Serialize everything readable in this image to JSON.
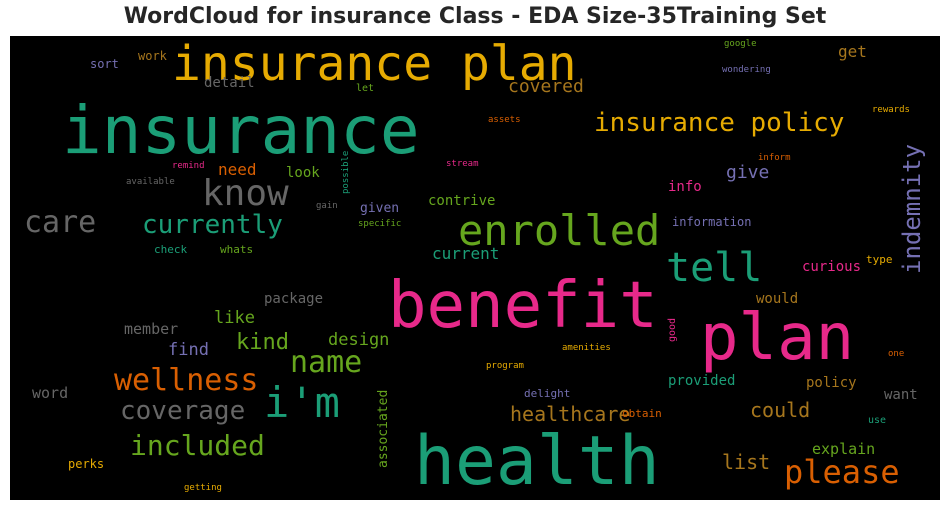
{
  "title": "WordCloud for insurance Class - EDA Size-35Training Set",
  "colors": {
    "background": "#000000",
    "teal": "#1b9e77",
    "orange": "#d95f02",
    "purple": "#7570b3",
    "pink": "#e7298a",
    "green": "#66a61e",
    "gold": "#e6ab02",
    "brown": "#a6761d",
    "gray": "#666666"
  },
  "words": [
    {
      "text": "insurance plan",
      "color": "#e6ab02"
    },
    {
      "text": "insurance",
      "color": "#1b9e77"
    },
    {
      "text": "insurance policy",
      "color": "#e6ab02"
    },
    {
      "text": "know",
      "color": "#666666"
    },
    {
      "text": "care",
      "color": "#666666"
    },
    {
      "text": "currently",
      "color": "#1b9e77"
    },
    {
      "text": "enrolled",
      "color": "#66a61e"
    },
    {
      "text": "tell",
      "color": "#1b9e77"
    },
    {
      "text": "benefit",
      "color": "#e7298a"
    },
    {
      "text": "plan",
      "color": "#e7298a"
    },
    {
      "text": "health",
      "color": "#1b9e77"
    },
    {
      "text": "wellness",
      "color": "#d95f02"
    },
    {
      "text": "i'm",
      "color": "#1b9e77"
    },
    {
      "text": "name",
      "color": "#66a61e"
    },
    {
      "text": "coverage",
      "color": "#666666"
    },
    {
      "text": "included",
      "color": "#66a61e"
    },
    {
      "text": "please",
      "color": "#d95f02"
    },
    {
      "text": "indemnity",
      "color": "#7570b3"
    },
    {
      "text": "covered",
      "color": "#a6761d"
    },
    {
      "text": "get",
      "color": "#a6761d"
    },
    {
      "text": "detail",
      "color": "#666666"
    },
    {
      "text": "sort",
      "color": "#7570b3"
    },
    {
      "text": "work",
      "color": "#a6761d"
    },
    {
      "text": "let",
      "color": "#66a61e"
    },
    {
      "text": "need",
      "color": "#d95f02"
    },
    {
      "text": "look",
      "color": "#66a61e"
    },
    {
      "text": "give",
      "color": "#7570b3"
    },
    {
      "text": "info",
      "color": "#e7298a"
    },
    {
      "text": "contrive",
      "color": "#66a61e"
    },
    {
      "text": "given",
      "color": "#7570b3"
    },
    {
      "text": "information",
      "color": "#7570b3"
    },
    {
      "text": "current",
      "color": "#1b9e77"
    },
    {
      "text": "check",
      "color": "#1b9e77"
    },
    {
      "text": "whats",
      "color": "#66a61e"
    },
    {
      "text": "package",
      "color": "#666666"
    },
    {
      "text": "like",
      "color": "#66a61e"
    },
    {
      "text": "member",
      "color": "#666666"
    },
    {
      "text": "design",
      "color": "#66a61e"
    },
    {
      "text": "kind",
      "color": "#66a61e"
    },
    {
      "text": "find",
      "color": "#7570b3"
    },
    {
      "text": "word",
      "color": "#666666"
    },
    {
      "text": "healthcare",
      "color": "#a6761d"
    },
    {
      "text": "could",
      "color": "#a6761d"
    },
    {
      "text": "would",
      "color": "#a6761d"
    },
    {
      "text": "curious",
      "color": "#e7298a"
    },
    {
      "text": "type",
      "color": "#e6ab02"
    },
    {
      "text": "provided",
      "color": "#1b9e77"
    },
    {
      "text": "policy",
      "color": "#a6761d"
    },
    {
      "text": "want",
      "color": "#666666"
    },
    {
      "text": "explain",
      "color": "#66a61e"
    },
    {
      "text": "list",
      "color": "#a6761d"
    },
    {
      "text": "associated",
      "color": "#66a61e"
    },
    {
      "text": "delight",
      "color": "#7570b3"
    },
    {
      "text": "obtain",
      "color": "#d95f02"
    },
    {
      "text": "use",
      "color": "#1b9e77"
    },
    {
      "text": "perks",
      "color": "#e6ab02"
    },
    {
      "text": "getting",
      "color": "#e6ab02"
    },
    {
      "text": "program",
      "color": "#e6ab02"
    },
    {
      "text": "amenities",
      "color": "#e6ab02"
    },
    {
      "text": "good",
      "color": "#e7298a"
    },
    {
      "text": "one",
      "color": "#d95f02"
    },
    {
      "text": "google",
      "color": "#66a61e"
    },
    {
      "text": "wondering",
      "color": "#7570b3"
    },
    {
      "text": "rewards",
      "color": "#e6ab02"
    },
    {
      "text": "assets",
      "color": "#d95f02"
    },
    {
      "text": "inform",
      "color": "#d95f02"
    },
    {
      "text": "stream",
      "color": "#e7298a"
    },
    {
      "text": "remind",
      "color": "#e7298a"
    },
    {
      "text": "available",
      "color": "#666666"
    },
    {
      "text": "possible",
      "color": "#1b9e77"
    },
    {
      "text": "gain",
      "color": "#666666"
    },
    {
      "text": "specific",
      "color": "#66a61e"
    }
  ]
}
